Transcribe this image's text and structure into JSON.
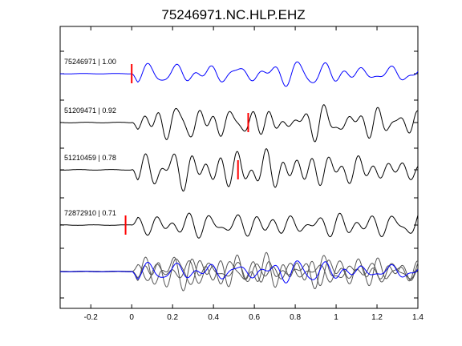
{
  "chart_data": {
    "type": "line",
    "title": "75246971.NC.HLP.EHZ",
    "xlim": [
      -0.35,
      1.4
    ],
    "x_ticks": [
      -0.2,
      0,
      0.2,
      0.4,
      0.6,
      0.8,
      1,
      1.2,
      1.4
    ],
    "x_tick_labels": [
      "-0.2",
      "0",
      "0.2",
      "0.4",
      "0.6",
      "0.8",
      "1",
      "1.2",
      "1.4"
    ],
    "grid": false,
    "colors": {
      "target": "#0000ff",
      "match": "#000000",
      "stack_match": "#555555",
      "pick": "#ff0000"
    },
    "traces": [
      {
        "label": "75246971 | 1.00",
        "id": "75246971",
        "cc": 1.0,
        "role": "target",
        "pick_time": 0.0,
        "onset": 0.0,
        "seed": 11,
        "amp": 0.55
      },
      {
        "label": "51209471 | 0.92",
        "id": "51209471",
        "cc": 0.92,
        "role": "match",
        "pick_time": 0.57,
        "onset": 0.0,
        "seed": 23,
        "amp": 0.9
      },
      {
        "label": "51210459 | 0.78",
        "id": "51210459",
        "cc": 0.78,
        "role": "match",
        "pick_time": 0.52,
        "onset": 0.0,
        "seed": 37,
        "amp": 0.95
      },
      {
        "label": "72872910 | 0.71",
        "id": "72872910",
        "cc": 0.71,
        "role": "match",
        "pick_time": -0.03,
        "onset": 0.0,
        "seed": 53,
        "amp": 0.8
      }
    ],
    "stack": {
      "role": "overlay",
      "count": 4
    }
  }
}
